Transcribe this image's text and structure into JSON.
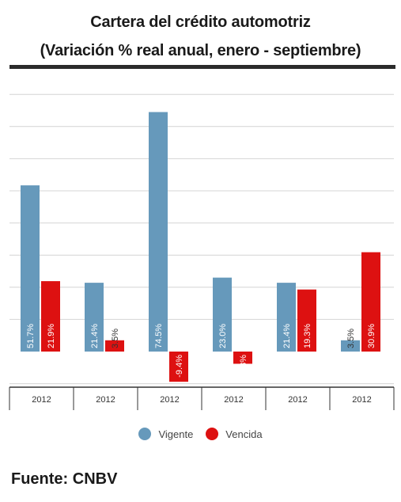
{
  "title": "Cartera del crédito automotriz",
  "subtitle": "(Variación % real anual, enero - septiembre)",
  "source": "Fuente: CNBV",
  "colors": {
    "vigente": "#6699bb",
    "vencida": "#dd1111"
  },
  "chart_data": {
    "type": "bar",
    "categories": [
      "2012",
      "2012",
      "2012",
      "2012",
      "2012",
      "2012"
    ],
    "series": [
      {
        "name": "Vigente",
        "values": [
          51.7,
          21.4,
          74.5,
          23.0,
          21.4,
          3.5
        ],
        "labels": [
          "51.7%",
          "21.4%",
          "74.5%",
          "23.0%",
          "21.4%",
          "3.5%"
        ]
      },
      {
        "name": "Vencida",
        "values": [
          21.9,
          3.5,
          -9.4,
          -3.8,
          19.3,
          30.9
        ],
        "labels": [
          "21.9%",
          "3.5%",
          "-9.4%",
          "-3.8%",
          "19.3%",
          "30.9%"
        ]
      }
    ],
    "ylim": [
      -10,
      80
    ],
    "grid": true,
    "legend": "bottom-center"
  }
}
